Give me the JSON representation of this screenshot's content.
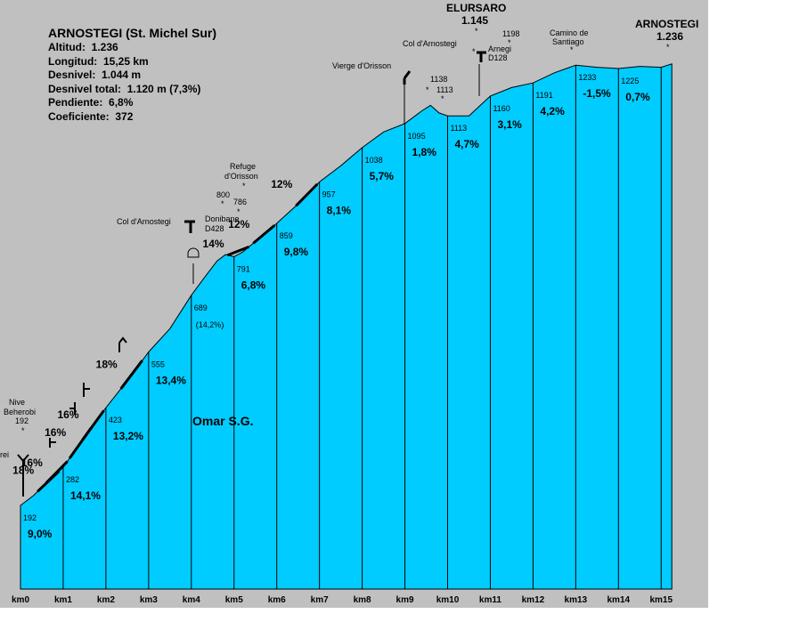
{
  "chart_data": {
    "type": "area",
    "title": "ARNOSTEGI (St. Michel Sur)",
    "stats": [
      {
        "label": "Altitud:",
        "value": "1.236"
      },
      {
        "label": "Longitud:",
        "value": "15,25 km"
      },
      {
        "label": "Desnivel:",
        "value": "1.044 m"
      },
      {
        "label": "Desnivel total:",
        "value": "1.120 m (7,3%)"
      },
      {
        "label": "Pendiente:",
        "value": "6,8%"
      },
      {
        "label": "Coeficiente:",
        "value": "372"
      }
    ],
    "author": "Omar S.G.",
    "x_unit": "km",
    "xlim": [
      0,
      15.25
    ],
    "km_ticks": [
      "km0",
      "km1",
      "km2",
      "km3",
      "km4",
      "km5",
      "km6",
      "km7",
      "km8",
      "km9",
      "km10",
      "km11",
      "km12",
      "km13",
      "km14",
      "km15"
    ],
    "profile": [
      [
        0,
        192
      ],
      [
        0.3,
        215
      ],
      [
        0.6,
        245
      ],
      [
        1.0,
        282
      ],
      [
        1.3,
        325
      ],
      [
        1.6,
        368
      ],
      [
        2.0,
        423
      ],
      [
        2.5,
        487
      ],
      [
        3.0,
        555
      ],
      [
        3.5,
        610
      ],
      [
        4.0,
        689
      ],
      [
        4.3,
        730
      ],
      [
        4.6,
        770
      ],
      [
        4.8,
        785
      ],
      [
        5.0,
        780
      ],
      [
        5.2,
        791
      ],
      [
        5.5,
        816
      ],
      [
        5.8,
        840
      ],
      [
        6.0,
        859
      ],
      [
        6.5,
        905
      ],
      [
        7.0,
        957
      ],
      [
        7.5,
        995
      ],
      [
        8.0,
        1038
      ],
      [
        8.5,
        1075
      ],
      [
        9.0,
        1095
      ],
      [
        9.4,
        1125
      ],
      [
        9.6,
        1138
      ],
      [
        9.8,
        1120
      ],
      [
        10.0,
        1113
      ],
      [
        10.5,
        1113
      ],
      [
        11.0,
        1160
      ],
      [
        11.5,
        1180
      ],
      [
        12.0,
        1191
      ],
      [
        12.5,
        1215
      ],
      [
        13.0,
        1233
      ],
      [
        13.5,
        1228
      ],
      [
        14.0,
        1225
      ],
      [
        14.5,
        1230
      ],
      [
        15.0,
        1228
      ],
      [
        15.25,
        1236
      ]
    ],
    "km_labels": [
      {
        "km": 0,
        "alt": "192",
        "slope": "9,0%"
      },
      {
        "km": 1,
        "alt": "282",
        "slope": "14,1%"
      },
      {
        "km": 2,
        "alt": "423",
        "slope": "13,2%"
      },
      {
        "km": 3,
        "alt": "555",
        "slope": "13,4%"
      },
      {
        "km": 4,
        "alt": "689",
        "slope": "(14,2%)"
      },
      {
        "km": 5,
        "alt": "791",
        "slope": "6,8%"
      },
      {
        "km": 6,
        "alt": "859",
        "slope": "9,8%"
      },
      {
        "km": 7,
        "alt": "957",
        "slope": "8,1%"
      },
      {
        "km": 8,
        "alt": "1038",
        "slope": "5,7%"
      },
      {
        "km": 9,
        "alt": "1095",
        "slope": "1,8%"
      },
      {
        "km": 10,
        "alt": "1113",
        "slope": "4,7%"
      },
      {
        "km": 11,
        "alt": "1160",
        "slope": "3,1%"
      },
      {
        "km": 12,
        "alt": "1191",
        "slope": "4,2%"
      },
      {
        "km": 13,
        "alt": "1233",
        "slope": "-1,5%"
      },
      {
        "km": 14,
        "alt": "1225",
        "slope": "0,7%"
      }
    ],
    "steep_ramps": [
      {
        "km": 0.65,
        "alt": 240,
        "pct": "18%"
      },
      {
        "km": 0.85,
        "alt": 265,
        "pct": "16%"
      },
      {
        "km": 1.4,
        "alt": 345,
        "pct": "16%"
      },
      {
        "km": 1.7,
        "alt": 380,
        "pct": "16%"
      },
      {
        "km": 2.6,
        "alt": 500,
        "pct": "18%"
      },
      {
        "km": 5.1,
        "alt": 790,
        "pct": "14%"
      },
      {
        "km": 5.7,
        "alt": 835,
        "pct": "12%"
      },
      {
        "km": 6.7,
        "alt": 925,
        "pct": "12%"
      }
    ],
    "places": [
      {
        "name": "rei"
      },
      {
        "name": "Nive",
        "name2": "Beherobi",
        "alt": "192"
      },
      {
        "name": "Col d'Arnostegi"
      },
      {
        "name": "Donibane",
        "name2": "D428"
      },
      {
        "name": "Refuge",
        "name2": "d'Orisson"
      },
      {
        "spot1": "800",
        "spot2": "786"
      },
      {
        "name": "Vierge d'Orisson"
      },
      {
        "spot1": "1138",
        "spot2": "1113"
      },
      {
        "name": "Col d'Arnostegi",
        "spot": "1198"
      },
      {
        "name": "Arnegi",
        "name2": "D128"
      },
      {
        "name": "ELURSARO",
        "alt": "1.145"
      },
      {
        "name": "Camino de",
        "name2": "Santiago"
      },
      {
        "name": "ARNOSTEGI",
        "alt": "1.236"
      }
    ],
    "colors": {
      "fill": "#00ccff",
      "background": "#c0c0c0",
      "line": "#000000"
    }
  }
}
